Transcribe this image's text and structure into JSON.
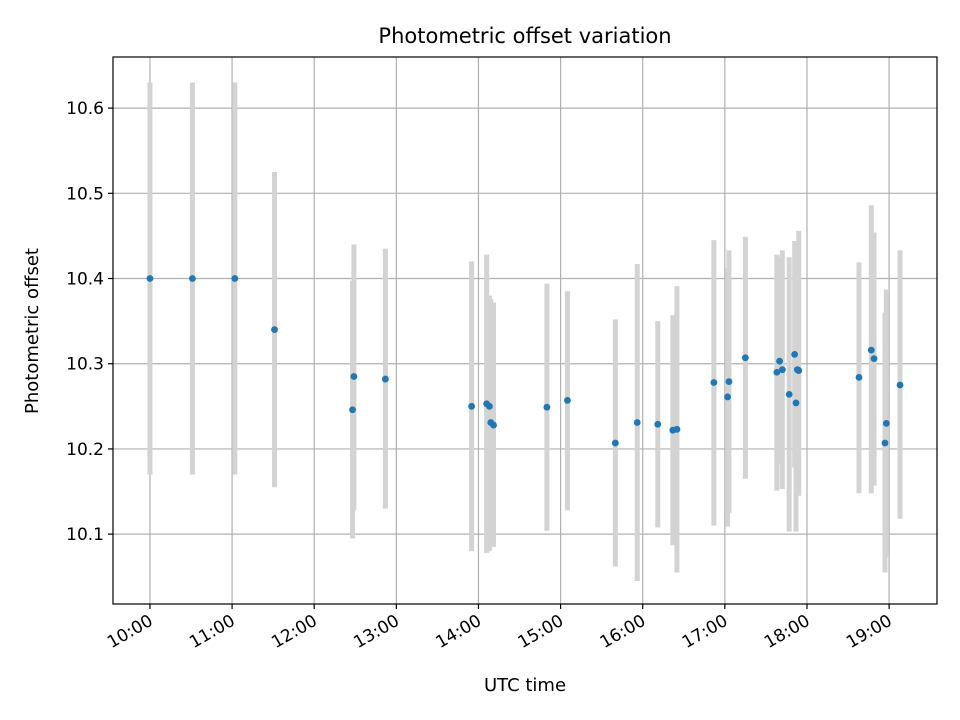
{
  "chart_data": {
    "type": "scatter",
    "title": "Photometric offset variation",
    "xlabel": "UTC time",
    "ylabel": "Photometric offset",
    "x_is_time": true,
    "xlim": [
      "09:33",
      "19:35"
    ],
    "ylim": [
      10.018,
      10.66
    ],
    "x_ticks": [
      "10:00",
      "11:00",
      "12:00",
      "13:00",
      "14:00",
      "15:00",
      "16:00",
      "17:00",
      "18:00",
      "19:00"
    ],
    "y_ticks": [
      10.1,
      10.2,
      10.3,
      10.4,
      10.5,
      10.6
    ],
    "y_tick_labels": [
      "10.1",
      "10.2",
      "10.3",
      "10.4",
      "10.5",
      "10.6"
    ],
    "grid": true,
    "marker_color": "#1f77b4",
    "errorbar_color": "#d3d3d3",
    "series": [
      {
        "points": [
          {
            "x": "10:00",
            "y": 10.4,
            "err_low": 10.17,
            "err_high": 10.63
          },
          {
            "x": "10:31",
            "y": 10.4,
            "err_low": 10.17,
            "err_high": 10.63
          },
          {
            "x": "11:02",
            "y": 10.4,
            "err_low": 10.17,
            "err_high": 10.63
          },
          {
            "x": "11:31",
            "y": 10.34,
            "err_low": 10.155,
            "err_high": 10.525
          },
          {
            "x": "12:28",
            "y": 10.246,
            "err_low": 10.095,
            "err_high": 10.397
          },
          {
            "x": "12:29",
            "y": 10.285,
            "err_low": 10.128,
            "err_high": 10.44
          },
          {
            "x": "12:52",
            "y": 10.282,
            "err_low": 10.13,
            "err_high": 10.435
          },
          {
            "x": "13:55",
            "y": 10.25,
            "err_low": 10.08,
            "err_high": 10.42
          },
          {
            "x": "14:06",
            "y": 10.253,
            "err_low": 10.078,
            "err_high": 10.428
          },
          {
            "x": "14:08",
            "y": 10.25,
            "err_low": 10.08,
            "err_high": 10.38
          },
          {
            "x": "14:09",
            "y": 10.231,
            "err_low": 10.085,
            "err_high": 10.376
          },
          {
            "x": "14:11",
            "y": 10.228,
            "err_low": 10.085,
            "err_high": 10.372
          },
          {
            "x": "14:50",
            "y": 10.249,
            "err_low": 10.104,
            "err_high": 10.394
          },
          {
            "x": "15:05",
            "y": 10.257,
            "err_low": 10.128,
            "err_high": 10.385
          },
          {
            "x": "15:40",
            "y": 10.207,
            "err_low": 10.062,
            "err_high": 10.352
          },
          {
            "x": "15:56",
            "y": 10.231,
            "err_low": 10.045,
            "err_high": 10.417
          },
          {
            "x": "16:11",
            "y": 10.229,
            "err_low": 10.108,
            "err_high": 10.35
          },
          {
            "x": "16:22",
            "y": 10.222,
            "err_low": 10.087,
            "err_high": 10.357
          },
          {
            "x": "16:25",
            "y": 10.223,
            "err_low": 10.055,
            "err_high": 10.391
          },
          {
            "x": "16:52",
            "y": 10.278,
            "err_low": 10.11,
            "err_high": 10.445
          },
          {
            "x": "17:02",
            "y": 10.261,
            "err_low": 10.109,
            "err_high": 10.412
          },
          {
            "x": "17:03",
            "y": 10.279,
            "err_low": 10.125,
            "err_high": 10.433
          },
          {
            "x": "17:15",
            "y": 10.307,
            "err_low": 10.165,
            "err_high": 10.449
          },
          {
            "x": "17:38",
            "y": 10.29,
            "err_low": 10.151,
            "err_high": 10.428
          },
          {
            "x": "17:40",
            "y": 10.303,
            "err_low": 10.182,
            "err_high": 10.425
          },
          {
            "x": "17:42",
            "y": 10.293,
            "err_low": 10.153,
            "err_high": 10.433
          },
          {
            "x": "17:47",
            "y": 10.264,
            "err_low": 10.103,
            "err_high": 10.425
          },
          {
            "x": "17:51",
            "y": 10.311,
            "err_low": 10.178,
            "err_high": 10.444
          },
          {
            "x": "17:52",
            "y": 10.254,
            "err_low": 10.103,
            "err_high": 10.405
          },
          {
            "x": "17:53",
            "y": 10.293,
            "err_low": 10.15,
            "err_high": 10.436
          },
          {
            "x": "17:54",
            "y": 10.292,
            "err_low": 10.145,
            "err_high": 10.456
          },
          {
            "x": "18:38",
            "y": 10.284,
            "err_low": 10.148,
            "err_high": 10.419
          },
          {
            "x": "18:47",
            "y": 10.316,
            "err_low": 10.148,
            "err_high": 10.486
          },
          {
            "x": "18:49",
            "y": 10.306,
            "err_low": 10.157,
            "err_high": 10.454
          },
          {
            "x": "18:57",
            "y": 10.207,
            "err_low": 10.055,
            "err_high": 10.36
          },
          {
            "x": "18:58",
            "y": 10.23,
            "err_low": 10.073,
            "err_high": 10.387
          },
          {
            "x": "19:08",
            "y": 10.275,
            "err_low": 10.118,
            "err_high": 10.433
          }
        ]
      }
    ]
  }
}
